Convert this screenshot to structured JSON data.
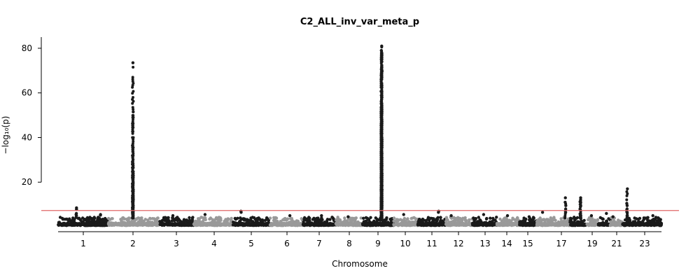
{
  "chart_data": {
    "type": "scatter",
    "title": "C2_ALL_inv_var_meta_p",
    "xlabel": "Chromosome",
    "ylabel": "−log₁₀(p)",
    "y_ticks": [
      20,
      40,
      60,
      80
    ],
    "ylim": [
      0,
      85
    ],
    "threshold": 7.3,
    "colors": {
      "dark": "#1a1a1a",
      "light": "#999999",
      "threshold": "#e06666"
    },
    "chromosome_labels": [
      "1",
      "2",
      "3",
      "4",
      "5",
      "6",
      "7",
      "8",
      "9",
      "10",
      "11",
      "12",
      "13",
      "14",
      "15",
      "17",
      "19",
      "21",
      "23"
    ],
    "chromosomes": [
      {
        "chr": "1",
        "peaks": [
          8.5,
          7.8,
          6.0,
          5.5,
          5.0
        ]
      },
      {
        "chr": "2",
        "peaks": [
          5.5,
          5.2
        ]
      },
      {
        "chr": "3",
        "peaks": [
          73.5,
          51.5,
          49.0,
          35.5,
          29.0,
          28.0,
          24.0,
          23.5,
          22.0,
          21.0,
          20.0,
          18.0,
          16.0,
          14.0,
          12.0,
          10.0,
          8.5,
          6.5
        ]
      },
      {
        "chr": "4",
        "peaks": [
          5.0
        ]
      },
      {
        "chr": "5",
        "peaks": [
          5.5
        ]
      },
      {
        "chr": "6",
        "peaks": [
          7.0,
          6.5
        ]
      },
      {
        "chr": "7",
        "peaks": [
          5.0
        ]
      },
      {
        "chr": "8",
        "peaks": [
          5.0
        ]
      },
      {
        "chr": "9",
        "peaks": [
          4.5
        ]
      },
      {
        "chr": "10",
        "peaks": [
          81.0,
          79.0,
          78.0,
          77.0,
          76.0,
          74.0,
          70.0,
          55.0,
          54.0,
          51.0,
          50.0,
          47.0,
          44.0,
          43.0,
          41.0,
          40.0,
          38.5,
          30.0,
          29.0,
          28.0,
          27.0,
          26.0,
          25.0,
          20.0,
          19.0,
          18.0,
          16.0,
          14.0,
          12.0,
          10.0,
          8.0,
          6.0
        ]
      },
      {
        "chr": "11",
        "peaks": [
          5.5
        ]
      },
      {
        "chr": "12",
        "peaks": [
          7.0,
          6.5
        ]
      },
      {
        "chr": "13",
        "peaks": [
          5.0
        ]
      },
      {
        "chr": "14",
        "peaks": [
          5.5
        ]
      },
      {
        "chr": "15",
        "peaks": [
          5.0
        ]
      },
      {
        "chr": "16",
        "peaks": [
          4.5
        ]
      },
      {
        "chr": "17",
        "peaks": [
          6.5
        ]
      },
      {
        "chr": "18",
        "peaks": [
          13.0,
          11.0,
          9.5,
          8.0,
          6.5
        ]
      },
      {
        "chr": "19",
        "peaks": [
          13.0,
          12.0,
          11.0,
          10.0,
          9.0,
          8.0
        ]
      },
      {
        "chr": "20",
        "peaks": [
          5.0
        ]
      },
      {
        "chr": "21",
        "peaks": [
          6.0
        ]
      },
      {
        "chr": "22",
        "peaks": [
          4.5
        ]
      },
      {
        "chr": "23",
        "peaks": [
          17.0,
          10.5,
          9.5,
          8.0,
          6.5
        ]
      },
      {
        "chr": "24",
        "peaks": [
          5.0
        ]
      }
    ]
  }
}
